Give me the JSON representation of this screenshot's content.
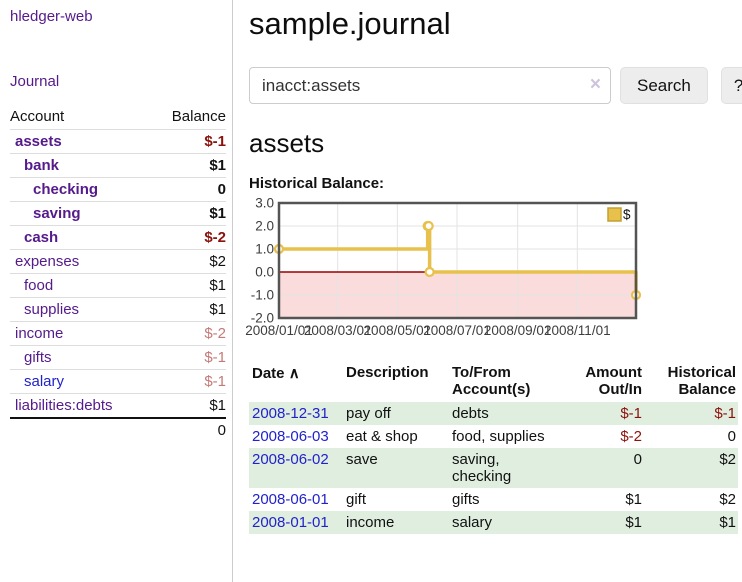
{
  "colors": {
    "link_purple": "#551a8b",
    "link_blue": "#2222cc",
    "negative_strong": "#8b120c",
    "negative_muted": "#c47a78",
    "row_green": "#e0eee0",
    "chart_yellow": "#e8c14d",
    "chart_zero_line": "#990000",
    "chart_negative_fill": "#fbdcdc"
  },
  "icons": {
    "clear": "×",
    "sort_ascending": "∧"
  },
  "sidebar": {
    "brand": "hledger-web",
    "journal_label": "Journal",
    "accounts_table": {
      "headers": {
        "account": "Account",
        "balance": "Balance"
      },
      "rows": [
        {
          "account": "assets",
          "depth": 0,
          "balance": "$-1",
          "bold": true,
          "neg": "neg-strong",
          "link": "purple"
        },
        {
          "account": "bank",
          "depth": 1,
          "balance": "$1",
          "bold": true,
          "neg": "",
          "link": "purple"
        },
        {
          "account": "checking",
          "depth": 2,
          "balance": "0",
          "bold": true,
          "neg": "",
          "link": "purple"
        },
        {
          "account": "saving",
          "depth": 2,
          "balance": "$1",
          "bold": true,
          "neg": "",
          "link": "purple"
        },
        {
          "account": "cash",
          "depth": 1,
          "balance": "$-2",
          "bold": true,
          "neg": "neg-strong",
          "link": "purple"
        },
        {
          "account": "expenses",
          "depth": 0,
          "balance": "$2",
          "bold": false,
          "neg": "",
          "link": "purple"
        },
        {
          "account": "food",
          "depth": 1,
          "balance": "$1",
          "bold": false,
          "neg": "",
          "link": "purple"
        },
        {
          "account": "supplies",
          "depth": 1,
          "balance": "$1",
          "bold": false,
          "neg": "",
          "link": "purple"
        },
        {
          "account": "income",
          "depth": 0,
          "balance": "$-2",
          "bold": false,
          "neg": "neg-muted",
          "link": "purple"
        },
        {
          "account": "gifts",
          "depth": 1,
          "balance": "$-1",
          "bold": false,
          "neg": "neg-muted",
          "link": "purple"
        },
        {
          "account": "salary",
          "depth": 1,
          "balance": "$-1",
          "bold": false,
          "neg": "neg-muted",
          "link": "blue"
        },
        {
          "account": "liabilities:debts",
          "depth": 0,
          "balance": "$1",
          "bold": false,
          "neg": "",
          "link": "purple"
        }
      ],
      "total": "0"
    }
  },
  "header": {
    "title": "sample.journal"
  },
  "search": {
    "value": "inacct:assets",
    "button": "Search",
    "help_button": "?"
  },
  "account_view": {
    "heading": "assets",
    "chart_label": "Historical Balance:"
  },
  "chart_data": {
    "type": "line",
    "title": "Historical Balance:",
    "step": true,
    "series": [
      {
        "name": "$",
        "color": "#e8c14d",
        "points": [
          [
            "2008-01-01",
            1
          ],
          [
            "2008-06-01",
            2
          ],
          [
            "2008-06-02",
            2
          ],
          [
            "2008-06-03",
            0
          ],
          [
            "2008-12-31",
            -1
          ]
        ]
      }
    ],
    "x_range": [
      "2008-01-01",
      "2008-12-31"
    ],
    "x_ticks": [
      "2008/01/01",
      "2008/03/01",
      "2008/05/01",
      "2008/07/01",
      "2008/09/01",
      "2008/11/01"
    ],
    "y_ticks": [
      3,
      2,
      1,
      0,
      -1,
      -2
    ],
    "ylim": [
      -2,
      3
    ],
    "grid": true,
    "legend_position": "top-right",
    "negative_region_fill": "#fbdcdc",
    "zero_line_color": "#990000"
  },
  "register": {
    "headers": [
      {
        "label": "Date",
        "sorted": true,
        "align": "left"
      },
      {
        "label": "Description",
        "align": "left"
      },
      {
        "label": "To/From Account(s)",
        "align": "left"
      },
      {
        "label": "Amount Out/In",
        "align": "right"
      },
      {
        "label": "Historical Balance",
        "align": "right"
      }
    ],
    "rows": [
      {
        "date": "2008-12-31",
        "description": "pay off",
        "accounts": "debts",
        "amount": "$-1",
        "balance": "$-1",
        "amount_neg": true,
        "balance_neg": true
      },
      {
        "date": "2008-06-03",
        "description": "eat & shop",
        "accounts": "food, supplies",
        "amount": "$-2",
        "balance": "0",
        "amount_neg": true,
        "balance_neg": false
      },
      {
        "date": "2008-06-02",
        "description": "save",
        "accounts": "saving, checking",
        "amount": "0",
        "balance": "$2",
        "amount_neg": false,
        "balance_neg": false
      },
      {
        "date": "2008-06-01",
        "description": "gift",
        "accounts": "gifts",
        "amount": "$1",
        "balance": "$2",
        "amount_neg": false,
        "balance_neg": false
      },
      {
        "date": "2008-01-01",
        "description": "income",
        "accounts": "salary",
        "amount": "$1",
        "balance": "$1",
        "amount_neg": false,
        "balance_neg": false
      }
    ]
  }
}
